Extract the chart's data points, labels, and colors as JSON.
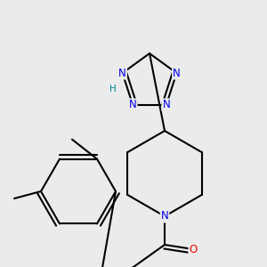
{
  "bg_color": "#ebebeb",
  "atom_colors": {
    "C": "#000000",
    "N": "#0000ee",
    "O": "#ee0000",
    "S": "#cccc00",
    "H": "#008888"
  },
  "bond_color": "#000000",
  "bond_width": 1.5,
  "font_size_atom": 8.5,
  "font_size_h": 7.5
}
